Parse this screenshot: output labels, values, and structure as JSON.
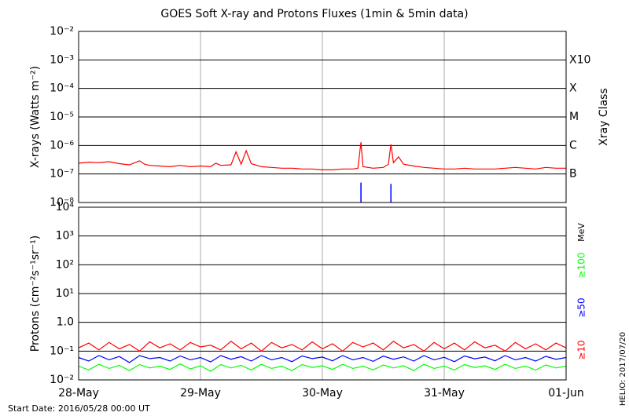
{
  "chart_data": [
    {
      "type": "line",
      "title": "GOES Soft X-ray and Protons Fluxes   (1min & 5min data)",
      "y_label": "X-rays (Watts m⁻²)",
      "y2_label": "Xray Class",
      "log_y": true,
      "xlim": [
        0,
        96
      ],
      "ylim": [
        1e-08,
        0.01
      ],
      "yticks": [
        {
          "value": 0.01,
          "label": "10⁻²"
        },
        {
          "value": 0.001,
          "label": "10⁻³"
        },
        {
          "value": 0.0001,
          "label": "10⁻⁴"
        },
        {
          "value": 1e-05,
          "label": "10⁻⁵"
        },
        {
          "value": 1e-06,
          "label": "10⁻⁶"
        },
        {
          "value": 1e-07,
          "label": "10⁻⁷"
        },
        {
          "value": 1e-08,
          "label": "10⁻⁸"
        }
      ],
      "y2ticks": [
        {
          "value": 0.001,
          "label": "X10"
        },
        {
          "value": 0.0001,
          "label": "X"
        },
        {
          "value": 1e-05,
          "label": "M"
        },
        {
          "value": 1e-06,
          "label": "C"
        },
        {
          "value": 1e-07,
          "label": "B"
        }
      ],
      "grid": true,
      "series": [
        {
          "color": "#ff0000",
          "x": [
            0,
            2,
            4,
            6,
            8,
            10,
            12,
            13,
            14,
            16,
            18,
            20,
            22,
            24,
            26,
            27,
            28,
            30,
            31,
            32,
            33,
            34,
            36,
            38,
            40,
            42,
            44,
            46,
            48,
            50,
            52,
            54,
            55,
            55.6,
            56,
            58,
            60,
            61,
            61.5,
            62,
            63,
            64,
            66,
            68,
            70,
            72,
            74,
            76,
            78,
            80,
            82,
            84,
            86,
            88,
            90,
            92,
            94,
            96
          ],
          "values": [
            2.4e-07,
            2.6e-07,
            2.5e-07,
            2.7e-07,
            2.3e-07,
            2.1e-07,
            2.9e-07,
            2.2e-07,
            2e-07,
            1.9e-07,
            1.8e-07,
            2e-07,
            1.8e-07,
            1.9e-07,
            1.8e-07,
            2.4e-07,
            2e-07,
            2.1e-07,
            6e-07,
            2.2e-07,
            6.5e-07,
            2.3e-07,
            1.8e-07,
            1.7e-07,
            1.6e-07,
            1.6e-07,
            1.5e-07,
            1.5e-07,
            1.4e-07,
            1.4e-07,
            1.5e-07,
            1.5e-07,
            1.6e-07,
            1.3e-06,
            1.8e-07,
            1.6e-07,
            1.7e-07,
            2.2e-07,
            1.1e-06,
            2.5e-07,
            4e-07,
            2.2e-07,
            1.9e-07,
            1.7e-07,
            1.6e-07,
            1.5e-07,
            1.5e-07,
            1.6e-07,
            1.5e-07,
            1.5e-07,
            1.5e-07,
            1.6e-07,
            1.7e-07,
            1.6e-07,
            1.5e-07,
            1.7e-07,
            1.6e-07,
            1.6e-07
          ]
        },
        {
          "color": "#0000ff",
          "style": "spikes",
          "x": [
            55.6,
            61.5
          ],
          "values": [
            5e-08,
            4.5e-08
          ]
        }
      ]
    },
    {
      "type": "line",
      "y_label": "Protons (cm⁻²s⁻¹sr⁻¹)",
      "log_y": true,
      "unit": "MeV",
      "legend": "right",
      "xlim": [
        0,
        96
      ],
      "xticks": [
        {
          "value": 0,
          "label": "28-May"
        },
        {
          "value": 24,
          "label": "29-May"
        },
        {
          "value": 48,
          "label": "30-May"
        },
        {
          "value": 72,
          "label": "31-May"
        },
        {
          "value": 96,
          "label": "01-Jun"
        }
      ],
      "ylim": [
        0.01,
        10000
      ],
      "yticks": [
        {
          "value": 10000,
          "label": "10⁴"
        },
        {
          "value": 1000,
          "label": "10³"
        },
        {
          "value": 100,
          "label": "10²"
        },
        {
          "value": 10,
          "label": "10¹"
        },
        {
          "value": 1,
          "label": "1.0"
        },
        {
          "value": 0.1,
          "label": "10⁻¹"
        },
        {
          "value": 0.01,
          "label": "10⁻²"
        }
      ],
      "threshold": 10,
      "grid": true,
      "x": [
        0,
        2,
        4,
        6,
        8,
        10,
        12,
        14,
        16,
        18,
        20,
        22,
        24,
        26,
        28,
        30,
        32,
        34,
        36,
        38,
        40,
        42,
        44,
        46,
        48,
        50,
        52,
        54,
        56,
        58,
        60,
        62,
        64,
        66,
        68,
        70,
        72,
        74,
        76,
        78,
        80,
        82,
        84,
        86,
        88,
        90,
        92,
        94,
        96
      ],
      "series": [
        {
          "name": "≥10",
          "color": "#ff0000",
          "values": [
            0.13,
            0.19,
            0.11,
            0.2,
            0.12,
            0.17,
            0.1,
            0.21,
            0.13,
            0.18,
            0.11,
            0.2,
            0.14,
            0.16,
            0.11,
            0.22,
            0.12,
            0.19,
            0.1,
            0.2,
            0.13,
            0.17,
            0.11,
            0.21,
            0.12,
            0.18,
            0.1,
            0.2,
            0.14,
            0.19,
            0.11,
            0.22,
            0.13,
            0.17,
            0.1,
            0.2,
            0.12,
            0.19,
            0.11,
            0.21,
            0.13,
            0.16,
            0.1,
            0.2,
            0.12,
            0.18,
            0.11,
            0.19,
            0.13
          ]
        },
        {
          "name": "≥50",
          "color": "#0000ff",
          "values": [
            0.06,
            0.045,
            0.07,
            0.05,
            0.065,
            0.04,
            0.07,
            0.055,
            0.06,
            0.045,
            0.068,
            0.05,
            0.06,
            0.042,
            0.07,
            0.052,
            0.064,
            0.045,
            0.07,
            0.05,
            0.06,
            0.043,
            0.068,
            0.055,
            0.062,
            0.046,
            0.07,
            0.05,
            0.06,
            0.044,
            0.067,
            0.052,
            0.063,
            0.045,
            0.07,
            0.05,
            0.061,
            0.043,
            0.068,
            0.054,
            0.062,
            0.046,
            0.07,
            0.05,
            0.06,
            0.045,
            0.066,
            0.052,
            0.06
          ]
        },
        {
          "name": "≥100",
          "color": "#00ff00",
          "values": [
            0.03,
            0.022,
            0.035,
            0.025,
            0.032,
            0.021,
            0.034,
            0.026,
            0.03,
            0.023,
            0.036,
            0.024,
            0.031,
            0.02,
            0.034,
            0.026,
            0.032,
            0.022,
            0.035,
            0.025,
            0.03,
            0.021,
            0.034,
            0.027,
            0.031,
            0.023,
            0.035,
            0.025,
            0.03,
            0.022,
            0.033,
            0.026,
            0.031,
            0.021,
            0.035,
            0.025,
            0.03,
            0.022,
            0.034,
            0.027,
            0.031,
            0.023,
            0.035,
            0.025,
            0.03,
            0.022,
            0.033,
            0.026,
            0.03
          ]
        }
      ]
    }
  ],
  "footer": {
    "start": "Start Date: 2016/05/28 00:00 UT",
    "stamp": "HELIO: 2017/07/20"
  }
}
